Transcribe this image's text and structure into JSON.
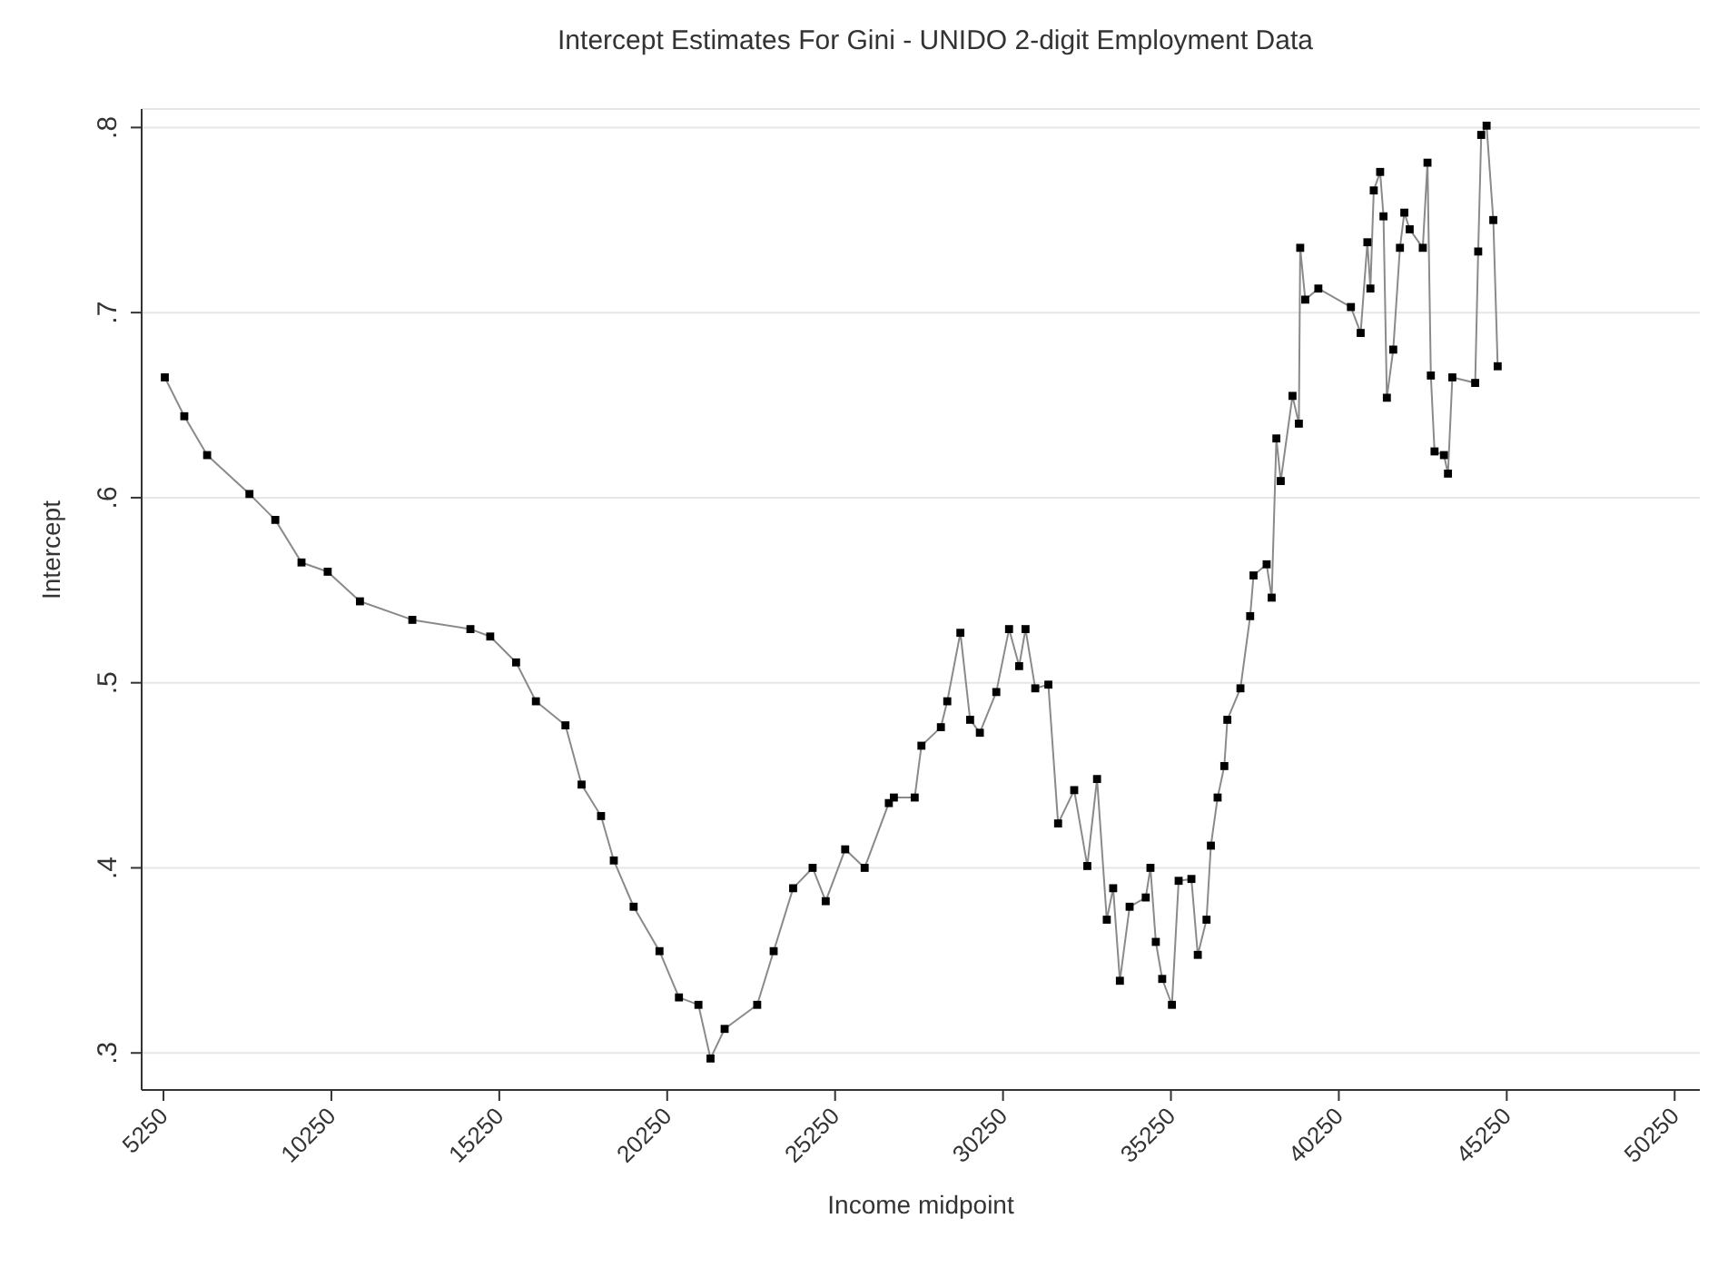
{
  "chart_data": {
    "type": "line",
    "title": "Intercept Estimates For Gini - UNIDO 2-digit Employment Data",
    "xlabel": "Income midpoint",
    "ylabel": "Intercept",
    "xlim": [
      4600,
      51000
    ],
    "xticks": [
      5250,
      10250,
      15250,
      20250,
      25250,
      30250,
      35250,
      40250,
      45250,
      50250
    ],
    "ylim": [
      0.28,
      0.81
    ],
    "yticks": [
      {
        "value": 0.3,
        "label": ".3"
      },
      {
        "value": 0.4,
        "label": ".4"
      },
      {
        "value": 0.5,
        "label": ".5"
      },
      {
        "value": 0.6,
        "label": ".6"
      },
      {
        "value": 0.7,
        "label": ".7"
      },
      {
        "value": 0.8,
        "label": ".8"
      }
    ],
    "grid": "y",
    "marker": "square",
    "line_style": "solid",
    "legend": false,
    "series": [
      {
        "color": "#000000",
        "x": [
          5290,
          5870,
          6550,
          7810,
          8580,
          9360,
          10140,
          11100,
          12660,
          14390,
          14980,
          15750,
          16340,
          17220,
          17700,
          18280,
          18660,
          19250,
          20020,
          20600,
          21180,
          21540,
          21960,
          22930,
          23420,
          24000,
          24580,
          24970,
          25550,
          26130,
          26850,
          27000,
          27620,
          27820,
          28400,
          28590,
          28980,
          29270,
          29560,
          30050,
          30430,
          30730,
          30920,
          31210,
          31600,
          31890,
          32370,
          32760,
          33050,
          33340,
          33530,
          33730,
          34020,
          34500,
          34640,
          34800,
          34990,
          35280,
          35480,
          35860,
          36050,
          36310,
          36440,
          36640,
          36840,
          36930,
          37320,
          37610,
          37710,
          38100,
          38250,
          38390,
          38520,
          38870,
          39060,
          39100,
          39250,
          39640,
          40610,
          40900,
          41100,
          41190,
          41290,
          41480,
          41580,
          41680,
          41870,
          42070,
          42200,
          42360,
          42750,
          42890,
          42990,
          43100,
          43380,
          43500,
          43630,
          44310,
          44400,
          44490,
          44650,
          44850,
          44980
        ],
        "values": [
          0.665,
          0.644,
          0.623,
          0.602,
          0.588,
          0.565,
          0.56,
          0.544,
          0.534,
          0.529,
          0.525,
          0.511,
          0.49,
          0.477,
          0.445,
          0.428,
          0.404,
          0.379,
          0.355,
          0.33,
          0.326,
          0.297,
          0.313,
          0.326,
          0.355,
          0.389,
          0.4,
          0.382,
          0.41,
          0.4,
          0.435,
          0.438,
          0.438,
          0.466,
          0.476,
          0.49,
          0.527,
          0.48,
          0.473,
          0.495,
          0.529,
          0.509,
          0.529,
          0.497,
          0.499,
          0.424,
          0.442,
          0.401,
          0.448,
          0.372,
          0.389,
          0.339,
          0.379,
          0.384,
          0.4,
          0.36,
          0.34,
          0.326,
          0.393,
          0.394,
          0.353,
          0.372,
          0.412,
          0.438,
          0.455,
          0.48,
          0.497,
          0.536,
          0.558,
          0.564,
          0.546,
          0.632,
          0.609,
          0.655,
          0.64,
          0.735,
          0.707,
          0.713,
          0.703,
          0.689,
          0.738,
          0.713,
          0.766,
          0.776,
          0.752,
          0.654,
          0.68,
          0.735,
          0.754,
          0.745,
          0.735,
          0.781,
          0.666,
          0.625,
          0.623,
          0.613,
          0.665,
          0.662,
          0.733,
          0.796,
          0.801,
          0.75,
          0.671
        ]
      }
    ]
  }
}
